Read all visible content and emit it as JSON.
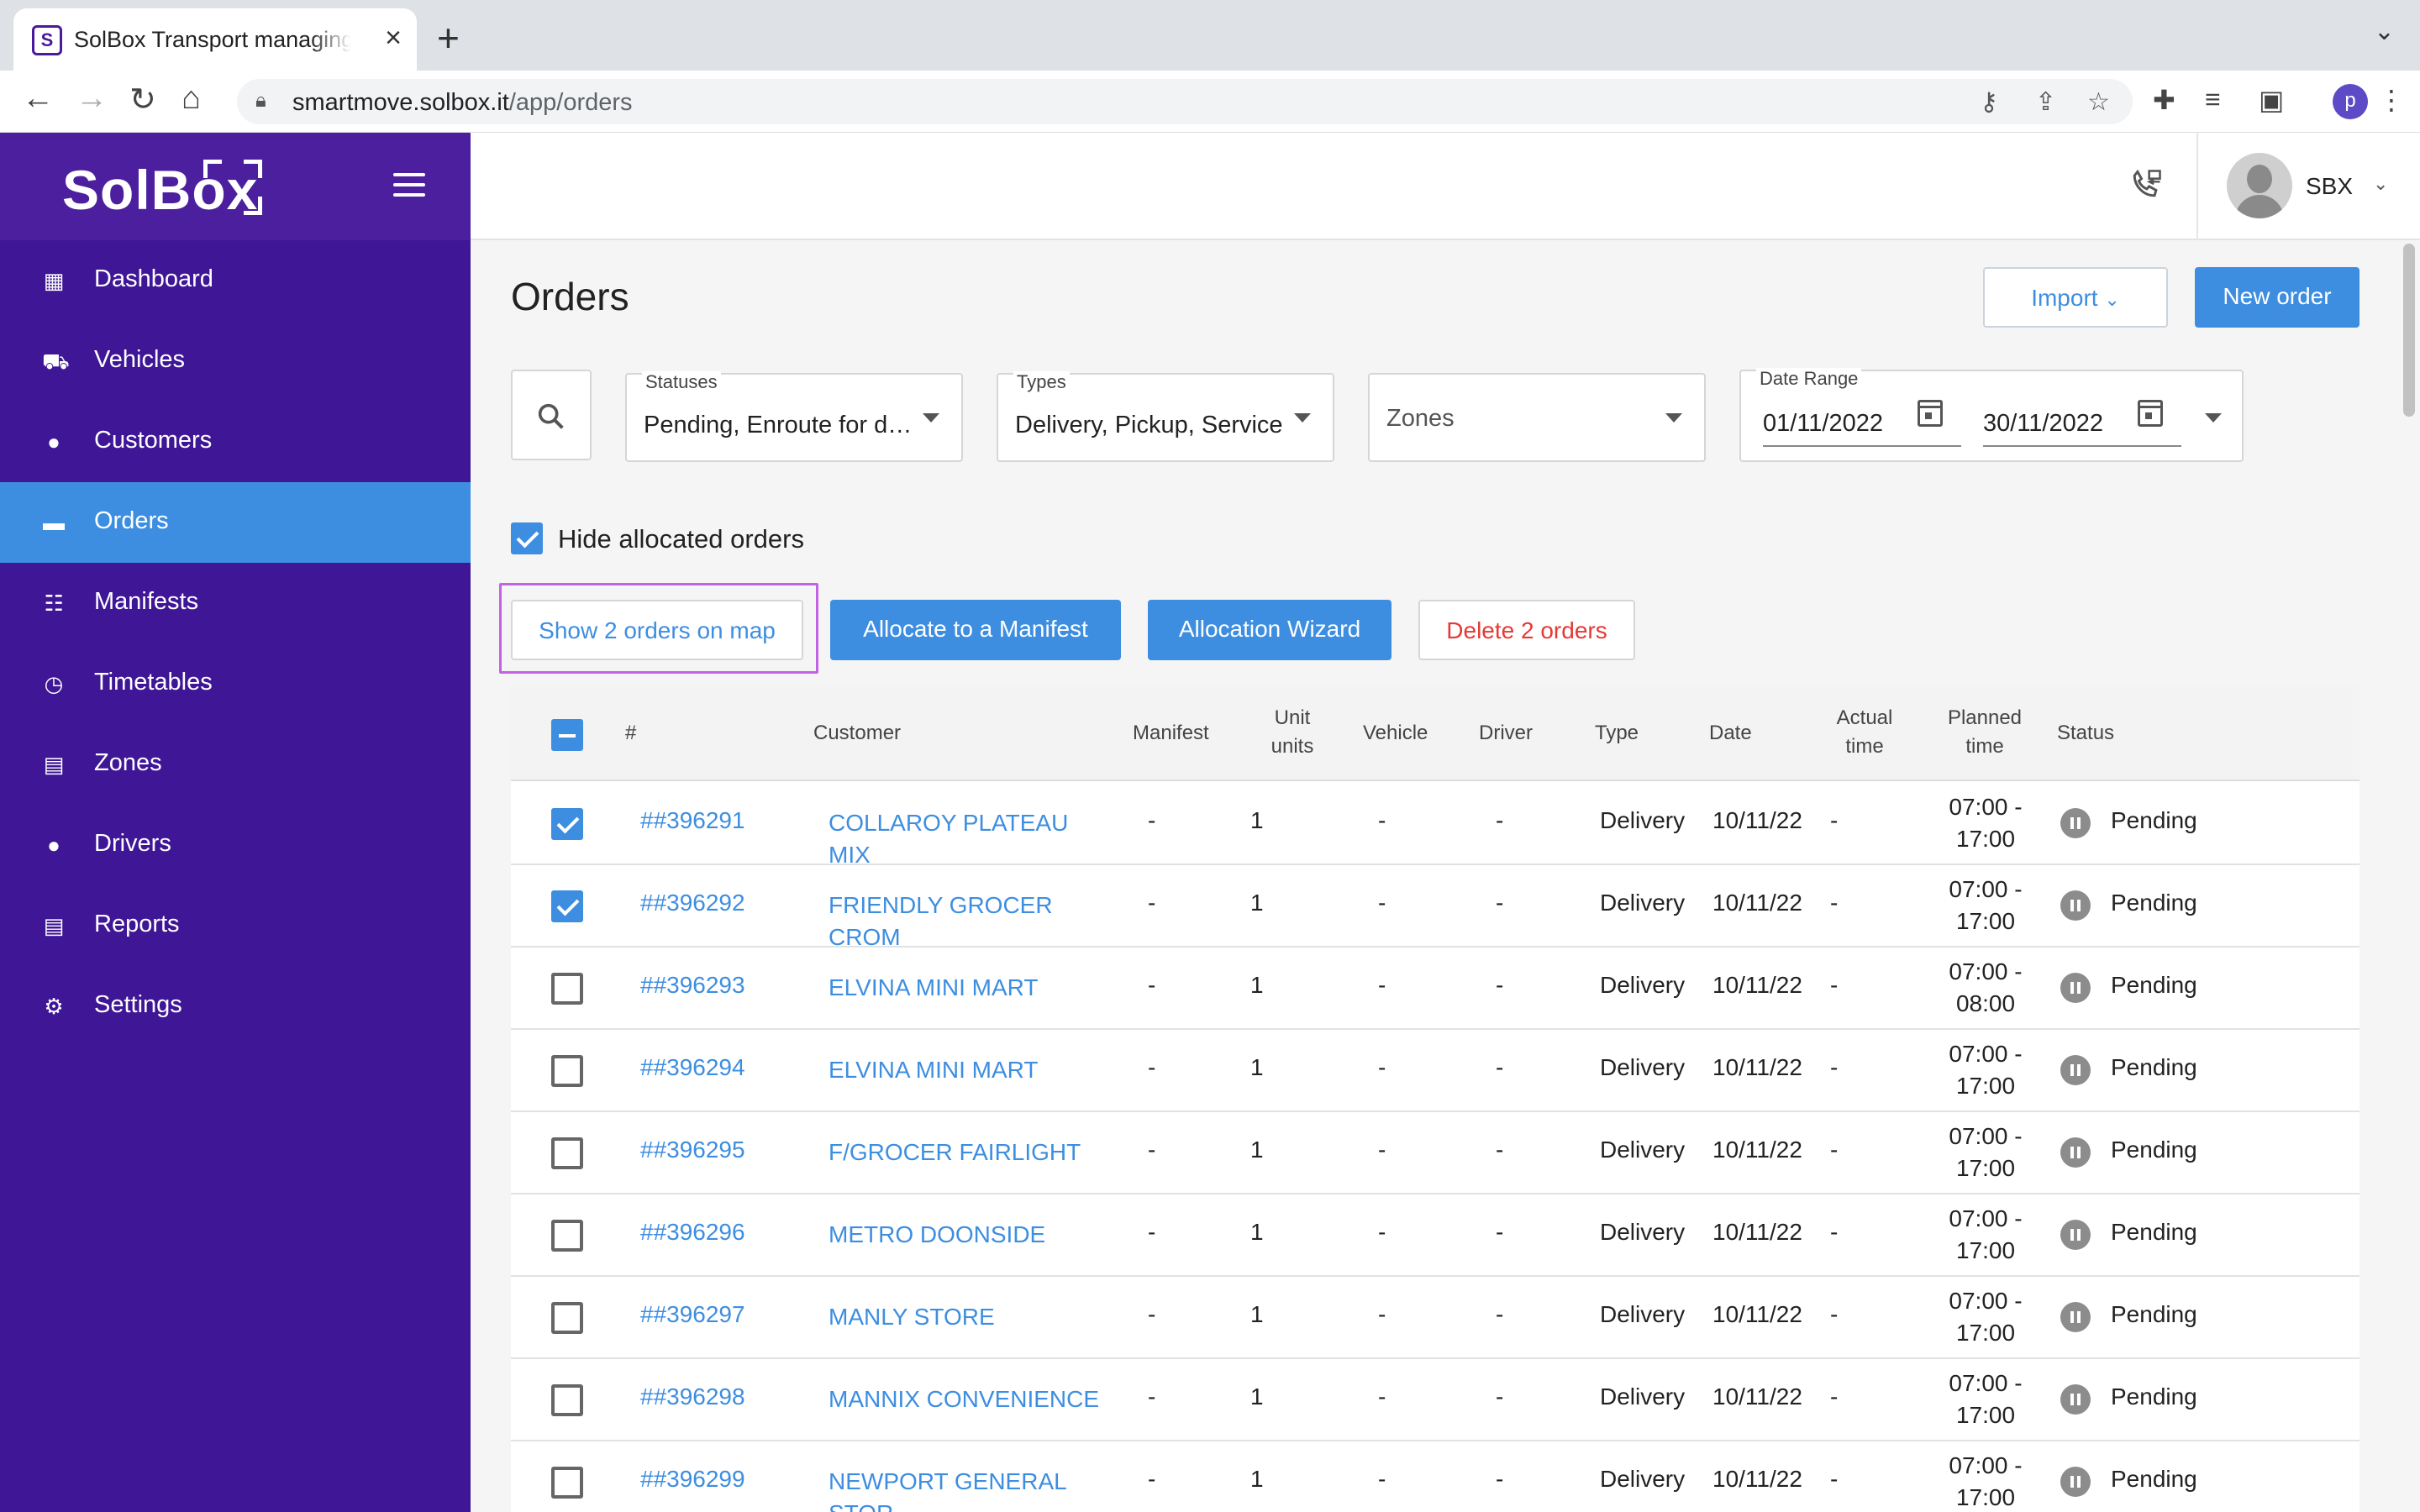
{
  "browser": {
    "tab_title": "SolBox Transport managing pla",
    "tab_favicon": "S",
    "url_host": "smartmove.solbox.it",
    "url_path": "/app/orders",
    "profile_initial": "p"
  },
  "sidebar": {
    "logo": "SolBox",
    "items": [
      {
        "label": "Dashboard",
        "icon": "dashboard-icon"
      },
      {
        "label": "Vehicles",
        "icon": "truck-icon"
      },
      {
        "label": "Customers",
        "icon": "person-icon"
      },
      {
        "label": "Orders",
        "icon": "folder-icon",
        "active": true
      },
      {
        "label": "Manifests",
        "icon": "manifest-icon"
      },
      {
        "label": "Timetables",
        "icon": "clock-icon"
      },
      {
        "label": "Zones",
        "icon": "zones-icon"
      },
      {
        "label": "Drivers",
        "icon": "person-icon"
      },
      {
        "label": "Reports",
        "icon": "reports-icon"
      },
      {
        "label": "Settings",
        "icon": "gear-icon"
      }
    ]
  },
  "header": {
    "user_name": "SBX"
  },
  "page": {
    "title": "Orders",
    "import_label": "Import",
    "new_order_label": "New order"
  },
  "filters": {
    "statuses_label": "Statuses",
    "statuses_value": "Pending, Enroute for del...",
    "types_label": "Types",
    "types_value": "Delivery, Pickup, Service",
    "zones_placeholder": "Zones",
    "date_range_label": "Date Range",
    "date_from": "01/11/2022",
    "date_to": "30/11/2022"
  },
  "options": {
    "hide_allocated_label": "Hide allocated orders",
    "hide_allocated_checked": true
  },
  "actions": {
    "show_map": "Show 2 orders on map",
    "allocate": "Allocate to a Manifest",
    "wizard": "Allocation Wizard",
    "delete": "Delete 2 orders"
  },
  "table": {
    "columns": {
      "number": "#",
      "customer": "Customer",
      "manifest": "Manifest",
      "unit_1": "Unit",
      "unit_2": "units",
      "vehicle": "Vehicle",
      "driver": "Driver",
      "type": "Type",
      "date": "Date",
      "actual_1": "Actual",
      "actual_2": "time",
      "planned_1": "Planned",
      "planned_2": "time",
      "status": "Status"
    },
    "rows": [
      {
        "checked": true,
        "id": "##396291",
        "customer": "COLLAROY PLATEAU MIX",
        "manifest": "-",
        "units": "1",
        "vehicle": "-",
        "driver": "-",
        "type": "Delivery",
        "date": "10/11/22",
        "actual": "-",
        "planned_1": "07:00 -",
        "planned_2": "17:00",
        "status": "Pending"
      },
      {
        "checked": true,
        "id": "##396292",
        "customer": "FRIENDLY GROCER CROM",
        "manifest": "-",
        "units": "1",
        "vehicle": "-",
        "driver": "-",
        "type": "Delivery",
        "date": "10/11/22",
        "actual": "-",
        "planned_1": "07:00 -",
        "planned_2": "17:00",
        "status": "Pending"
      },
      {
        "checked": false,
        "id": "##396293",
        "customer": "ELVINA MINI MART",
        "manifest": "-",
        "units": "1",
        "vehicle": "-",
        "driver": "-",
        "type": "Delivery",
        "date": "10/11/22",
        "actual": "-",
        "planned_1": "07:00 -",
        "planned_2": "08:00",
        "status": "Pending"
      },
      {
        "checked": false,
        "id": "##396294",
        "customer": "ELVINA MINI MART",
        "manifest": "-",
        "units": "1",
        "vehicle": "-",
        "driver": "-",
        "type": "Delivery",
        "date": "10/11/22",
        "actual": "-",
        "planned_1": "07:00 -",
        "planned_2": "17:00",
        "status": "Pending"
      },
      {
        "checked": false,
        "id": "##396295",
        "customer": "F/GROCER FAIRLIGHT",
        "manifest": "-",
        "units": "1",
        "vehicle": "-",
        "driver": "-",
        "type": "Delivery",
        "date": "10/11/22",
        "actual": "-",
        "planned_1": "07:00 -",
        "planned_2": "17:00",
        "status": "Pending"
      },
      {
        "checked": false,
        "id": "##396296",
        "customer": "METRO DOONSIDE",
        "manifest": "-",
        "units": "1",
        "vehicle": "-",
        "driver": "-",
        "type": "Delivery",
        "date": "10/11/22",
        "actual": "-",
        "planned_1": "07:00 -",
        "planned_2": "17:00",
        "status": "Pending"
      },
      {
        "checked": false,
        "id": "##396297",
        "customer": "MANLY STORE",
        "manifest": "-",
        "units": "1",
        "vehicle": "-",
        "driver": "-",
        "type": "Delivery",
        "date": "10/11/22",
        "actual": "-",
        "planned_1": "07:00 -",
        "planned_2": "17:00",
        "status": "Pending"
      },
      {
        "checked": false,
        "id": "##396298",
        "customer": "MANNIX CONVENIENCE",
        "manifest": "-",
        "units": "1",
        "vehicle": "-",
        "driver": "-",
        "type": "Delivery",
        "date": "10/11/22",
        "actual": "-",
        "planned_1": "07:00 -",
        "planned_2": "17:00",
        "status": "Pending"
      },
      {
        "checked": false,
        "id": "##396299",
        "customer": "NEWPORT GENERAL STOR",
        "manifest": "-",
        "units": "1",
        "vehicle": "-",
        "driver": "-",
        "type": "Delivery",
        "date": "10/11/22",
        "actual": "-",
        "planned_1": "07:00 -",
        "planned_2": "17:00",
        "status": "Pending"
      }
    ]
  },
  "colors": {
    "sidebar": "#3f1696",
    "accent": "#3d8ee0",
    "danger": "#e53935",
    "highlight": "#c462e5"
  }
}
